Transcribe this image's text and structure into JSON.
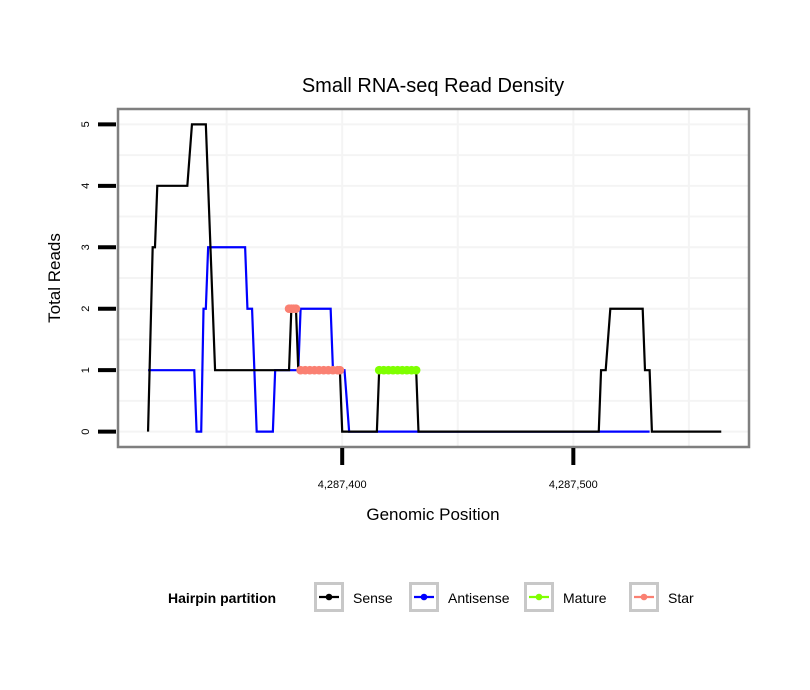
{
  "chart_data": {
    "type": "line",
    "title": "Small RNA-seq Read Density",
    "xlabel": "Genomic Position",
    "ylabel": "Total Reads",
    "xlim": [
      4287303,
      4287576
    ],
    "ylim": [
      -0.25,
      5.25
    ],
    "grid": true,
    "x_ticks": [
      {
        "value": 4287400,
        "label": "4,287,400"
      },
      {
        "value": 4287500,
        "label": "4,287,500"
      }
    ],
    "x_minor_gridlines": [
      4287350,
      4287450,
      4287550
    ],
    "y_ticks": [
      {
        "value": 0,
        "label": "0"
      },
      {
        "value": 1,
        "label": "1"
      },
      {
        "value": 2,
        "label": "2"
      },
      {
        "value": 3,
        "label": "3"
      },
      {
        "value": 4,
        "label": "4"
      },
      {
        "value": 5,
        "label": "5"
      }
    ],
    "y_minor_gridlines": [
      0.5,
      1.5,
      2.5,
      3.5,
      4.5
    ],
    "legend": {
      "title": "Hairpin partition",
      "position": "bottom",
      "entries": [
        {
          "name": "Sense",
          "color": "#000000"
        },
        {
          "name": "Antisense",
          "color": "#0000FF"
        },
        {
          "name": "Mature",
          "color": "#7FFF00"
        },
        {
          "name": "Star",
          "color": "#FA8072"
        }
      ]
    },
    "series": [
      {
        "name": "Sense",
        "color": "#000000",
        "style": "line",
        "points": [
          [
            4287316,
            0
          ],
          [
            4287318,
            3
          ],
          [
            4287319,
            3
          ],
          [
            4287320,
            4
          ],
          [
            4287333,
            4
          ],
          [
            4287335,
            5
          ],
          [
            4287341,
            5
          ],
          [
            4287345,
            1
          ],
          [
            4287377,
            1
          ],
          [
            4287378,
            2
          ],
          [
            4287380,
            2
          ],
          [
            4287381,
            1
          ],
          [
            4287399,
            1
          ],
          [
            4287400,
            0
          ],
          [
            4287415,
            0
          ],
          [
            4287416,
            1
          ],
          [
            4287432,
            1
          ],
          [
            4287433,
            0
          ],
          [
            4287511,
            0
          ],
          [
            4287512,
            1
          ],
          [
            4287514,
            1
          ],
          [
            4287516,
            2
          ],
          [
            4287530,
            2
          ],
          [
            4287531,
            1
          ],
          [
            4287533,
            1
          ],
          [
            4287534,
            0
          ],
          [
            4287564,
            0
          ]
        ]
      },
      {
        "name": "Antisense",
        "color": "#0000FF",
        "style": "line",
        "points": [
          [
            4287316,
            1
          ],
          [
            4287336,
            1
          ],
          [
            4287337,
            0
          ],
          [
            4287339,
            0
          ],
          [
            4287340,
            2
          ],
          [
            4287341,
            2
          ],
          [
            4287342,
            3
          ],
          [
            4287358,
            3
          ],
          [
            4287359,
            2
          ],
          [
            4287361,
            2
          ],
          [
            4287363,
            0
          ],
          [
            4287370,
            0
          ],
          [
            4287371,
            1
          ],
          [
            4287381,
            1
          ],
          [
            4287382,
            2
          ],
          [
            4287395,
            2
          ],
          [
            4287396,
            1
          ],
          [
            4287401,
            1
          ],
          [
            4287403,
            0
          ],
          [
            4287533,
            0
          ]
        ]
      },
      {
        "name": "Mature",
        "color": "#7FFF00",
        "style": "points",
        "points": [
          [
            4287416,
            1
          ],
          [
            4287418,
            1
          ],
          [
            4287420,
            1
          ],
          [
            4287422,
            1
          ],
          [
            4287424,
            1
          ],
          [
            4287426,
            1
          ],
          [
            4287428,
            1
          ],
          [
            4287430,
            1
          ],
          [
            4287432,
            1
          ]
        ]
      },
      {
        "name": "Star",
        "color": "#FA8072",
        "style": "points",
        "points": [
          [
            4287377,
            2
          ],
          [
            4287378,
            2
          ],
          [
            4287379,
            2
          ],
          [
            4287380,
            2
          ],
          [
            4287382,
            1
          ],
          [
            4287384,
            1
          ],
          [
            4287386,
            1
          ],
          [
            4287388,
            1
          ],
          [
            4287390,
            1
          ],
          [
            4287392,
            1
          ],
          [
            4287394,
            1
          ],
          [
            4287396,
            1
          ],
          [
            4287398,
            1
          ],
          [
            4287399,
            1
          ]
        ]
      }
    ]
  }
}
